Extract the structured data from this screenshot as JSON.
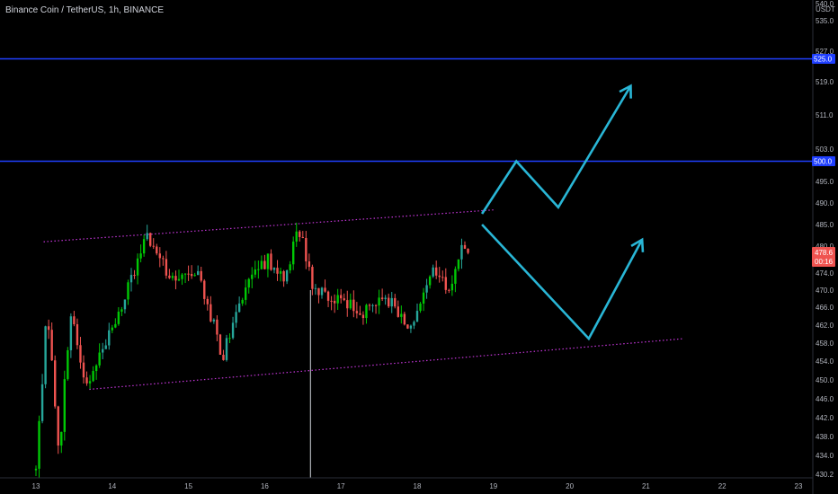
{
  "header": {
    "title": "Binance Coin / TetherUS, 1h, BINANCE"
  },
  "colors": {
    "background": "#000000",
    "up": "#26a69a",
    "up_bright": "#00c805",
    "down": "#ef5350",
    "level_line": "#1f3fff",
    "channel": "#c235d6",
    "projection": "#29b6d6",
    "axis_text": "#b2b5be"
  },
  "chart_data": {
    "type": "candlestick",
    "title": "Binance Coin / TetherUS, 1h, BINANCE",
    "y_axis_unit": "USDT",
    "ylim": [
      430.2,
      540.0
    ],
    "y_ticks": [
      "540.0",
      "535.0",
      "527.0",
      "519.0",
      "511.0",
      "503.0",
      "495.0",
      "490.0",
      "485.0",
      "480.0",
      "474.0",
      "470.0",
      "466.0",
      "462.0",
      "458.0",
      "454.0",
      "450.0",
      "446.0",
      "442.0",
      "438.0",
      "434.0",
      "430.2"
    ],
    "x_ticks": [
      "13",
      "14",
      "15",
      "16",
      "17",
      "18",
      "19",
      "20",
      "21",
      "22",
      "23"
    ],
    "price_levels": [
      {
        "label": "525.0",
        "value": 525.0
      },
      {
        "label": "500.0",
        "value": 500.0
      }
    ],
    "current_price": {
      "label": "478.6",
      "countdown": "00:16",
      "value": 478.6
    },
    "channel": {
      "upper": {
        "x1": 13.1,
        "y1": 481.0,
        "x2": 19.0,
        "y2": 488.4
      },
      "lower": {
        "x1": 13.7,
        "y1": 448.0,
        "x2": 21.5,
        "y2": 459.0
      }
    },
    "projections": [
      {
        "name": "breakout",
        "points": [
          [
            18.85,
            487.5
          ],
          [
            19.3,
            500.0
          ],
          [
            19.85,
            489.0
          ],
          [
            20.8,
            518.0
          ]
        ]
      },
      {
        "name": "retest",
        "points": [
          [
            18.85,
            485.0
          ],
          [
            20.25,
            459.0
          ],
          [
            20.95,
            481.5
          ]
        ]
      }
    ],
    "candle_key": [
      {
        "x": 13.0,
        "price": 431.0
      },
      {
        "x": 13.15,
        "price": 466.0
      },
      {
        "x": 13.3,
        "price": 433.0
      },
      {
        "x": 13.45,
        "price": 465.0
      },
      {
        "x": 13.65,
        "price": 449.0
      },
      {
        "x": 14.1,
        "price": 465.0
      },
      {
        "x": 14.45,
        "price": 482.0
      },
      {
        "x": 14.8,
        "price": 472.0
      },
      {
        "x": 15.1,
        "price": 475.0
      },
      {
        "x": 15.45,
        "price": 455.0
      },
      {
        "x": 15.8,
        "price": 473.0
      },
      {
        "x": 16.05,
        "price": 477.0
      },
      {
        "x": 16.25,
        "price": 472.0
      },
      {
        "x": 16.45,
        "price": 484.0
      },
      {
        "x": 16.55,
        "price": 477.0
      },
      {
        "x": 16.65,
        "price": 470.0
      },
      {
        "x": 17.0,
        "price": 467.0
      },
      {
        "x": 17.3,
        "price": 465.0
      },
      {
        "x": 17.55,
        "price": 469.0
      },
      {
        "x": 17.8,
        "price": 464.0
      },
      {
        "x": 17.95,
        "price": 461.0
      },
      {
        "x": 18.2,
        "price": 474.0
      },
      {
        "x": 18.45,
        "price": 470.0
      },
      {
        "x": 18.6,
        "price": 482.0
      },
      {
        "x": 18.68,
        "price": 478.6
      }
    ]
  }
}
